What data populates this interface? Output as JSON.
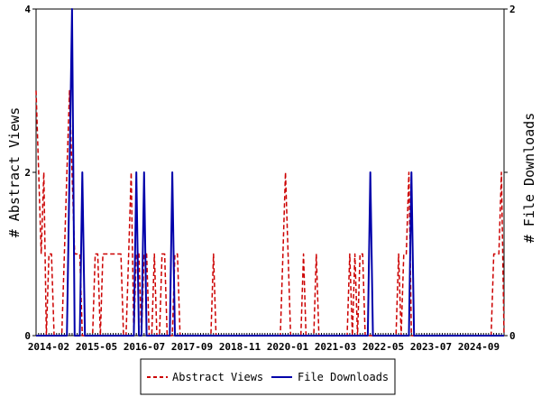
{
  "chart_data": {
    "type": "line",
    "ylabel_left": "# Abstract Views",
    "ylabel_right": "# File Downloads",
    "ylim_left": [
      0,
      4
    ],
    "ylim_right": [
      0,
      2
    ],
    "yticks_left": [
      "0",
      "2",
      "4"
    ],
    "yticks_right": [
      "0",
      "1",
      "2"
    ],
    "x_tick_labels": [
      "2014-02",
      "2015-05",
      "2016-07",
      "2017-09",
      "2018-11",
      "2020-01",
      "2021-03",
      "2022-05",
      "2023-07",
      "2024-09"
    ],
    "legend_position": "bottom-center",
    "series": [
      {
        "name": "Abstract Views",
        "axis": "left",
        "color": "#cc0000",
        "style": "dashed",
        "values": [
          3,
          2,
          1,
          2,
          0,
          1,
          1,
          0,
          0,
          0,
          0,
          1,
          2,
          3,
          2,
          1,
          1,
          1,
          0,
          0,
          0,
          0,
          0,
          1,
          1,
          0,
          1,
          1,
          1,
          1,
          1,
          1,
          1,
          1,
          0,
          0,
          1,
          2,
          0,
          1,
          1,
          0,
          1,
          1,
          0,
          0,
          1,
          0,
          0,
          1,
          1,
          0,
          0,
          0,
          1,
          1,
          0,
          0,
          0,
          0,
          0,
          0,
          0,
          0,
          0,
          0,
          0,
          0,
          0,
          1,
          0,
          0,
          0,
          0,
          0,
          0,
          0,
          0,
          0,
          0,
          0,
          0,
          0,
          0,
          0,
          0,
          0,
          0,
          0,
          0,
          0,
          0,
          0,
          0,
          0,
          0,
          1,
          2,
          1,
          0,
          0,
          0,
          0,
          0,
          1,
          0,
          0,
          0,
          0,
          1,
          0,
          0,
          0,
          0,
          0,
          0,
          0,
          0,
          0,
          0,
          0,
          0,
          1,
          0,
          1,
          0,
          1,
          1,
          0,
          0,
          0,
          0,
          0,
          0,
          0,
          0,
          0,
          0,
          0,
          0,
          0,
          1,
          0,
          1,
          1,
          2,
          0,
          0,
          0,
          0,
          0,
          0,
          0,
          0,
          0,
          0,
          0,
          0,
          0,
          0,
          0,
          0,
          0,
          0,
          0,
          0,
          0,
          0,
          0,
          0,
          0,
          0,
          0,
          0,
          0,
          0,
          0,
          0,
          1,
          1,
          1,
          2,
          0
        ]
      },
      {
        "name": "File Downloads",
        "axis": "right",
        "color": "#0000aa",
        "style": "solid",
        "values": [
          0,
          0,
          0,
          0,
          0,
          0,
          0,
          0,
          0,
          0,
          0,
          0,
          0,
          1,
          2,
          0,
          0,
          0,
          1,
          0,
          0,
          0,
          0,
          0,
          0,
          0,
          0,
          0,
          0,
          0,
          0,
          0,
          0,
          0,
          0,
          0,
          0,
          0,
          0,
          1,
          0,
          0,
          1,
          0,
          0,
          0,
          0,
          0,
          0,
          0,
          0,
          0,
          0,
          1,
          0,
          0,
          0,
          0,
          0,
          0,
          0,
          0,
          0,
          0,
          0,
          0,
          0,
          0,
          0,
          0,
          0,
          0,
          0,
          0,
          0,
          0,
          0,
          0,
          0,
          0,
          0,
          0,
          0,
          0,
          0,
          0,
          0,
          0,
          0,
          0,
          0,
          0,
          0,
          0,
          0,
          0,
          0,
          0,
          0,
          0,
          0,
          0,
          0,
          0,
          0,
          0,
          0,
          0,
          0,
          0,
          0,
          0,
          0,
          0,
          0,
          0,
          0,
          0,
          0,
          0,
          0,
          0,
          0,
          0,
          0,
          0,
          0,
          0,
          0,
          0,
          1,
          0,
          0,
          0,
          0,
          0,
          0,
          0,
          0,
          0,
          0,
          0,
          0,
          0,
          0,
          0,
          1,
          0,
          0,
          0,
          0,
          0,
          0,
          0,
          0,
          0,
          0,
          0,
          0,
          0,
          0,
          0,
          0,
          0,
          0,
          0,
          0,
          0,
          0,
          0,
          0,
          0,
          0,
          0,
          0,
          0,
          0,
          0,
          0,
          0,
          0,
          0,
          0
        ]
      }
    ]
  }
}
